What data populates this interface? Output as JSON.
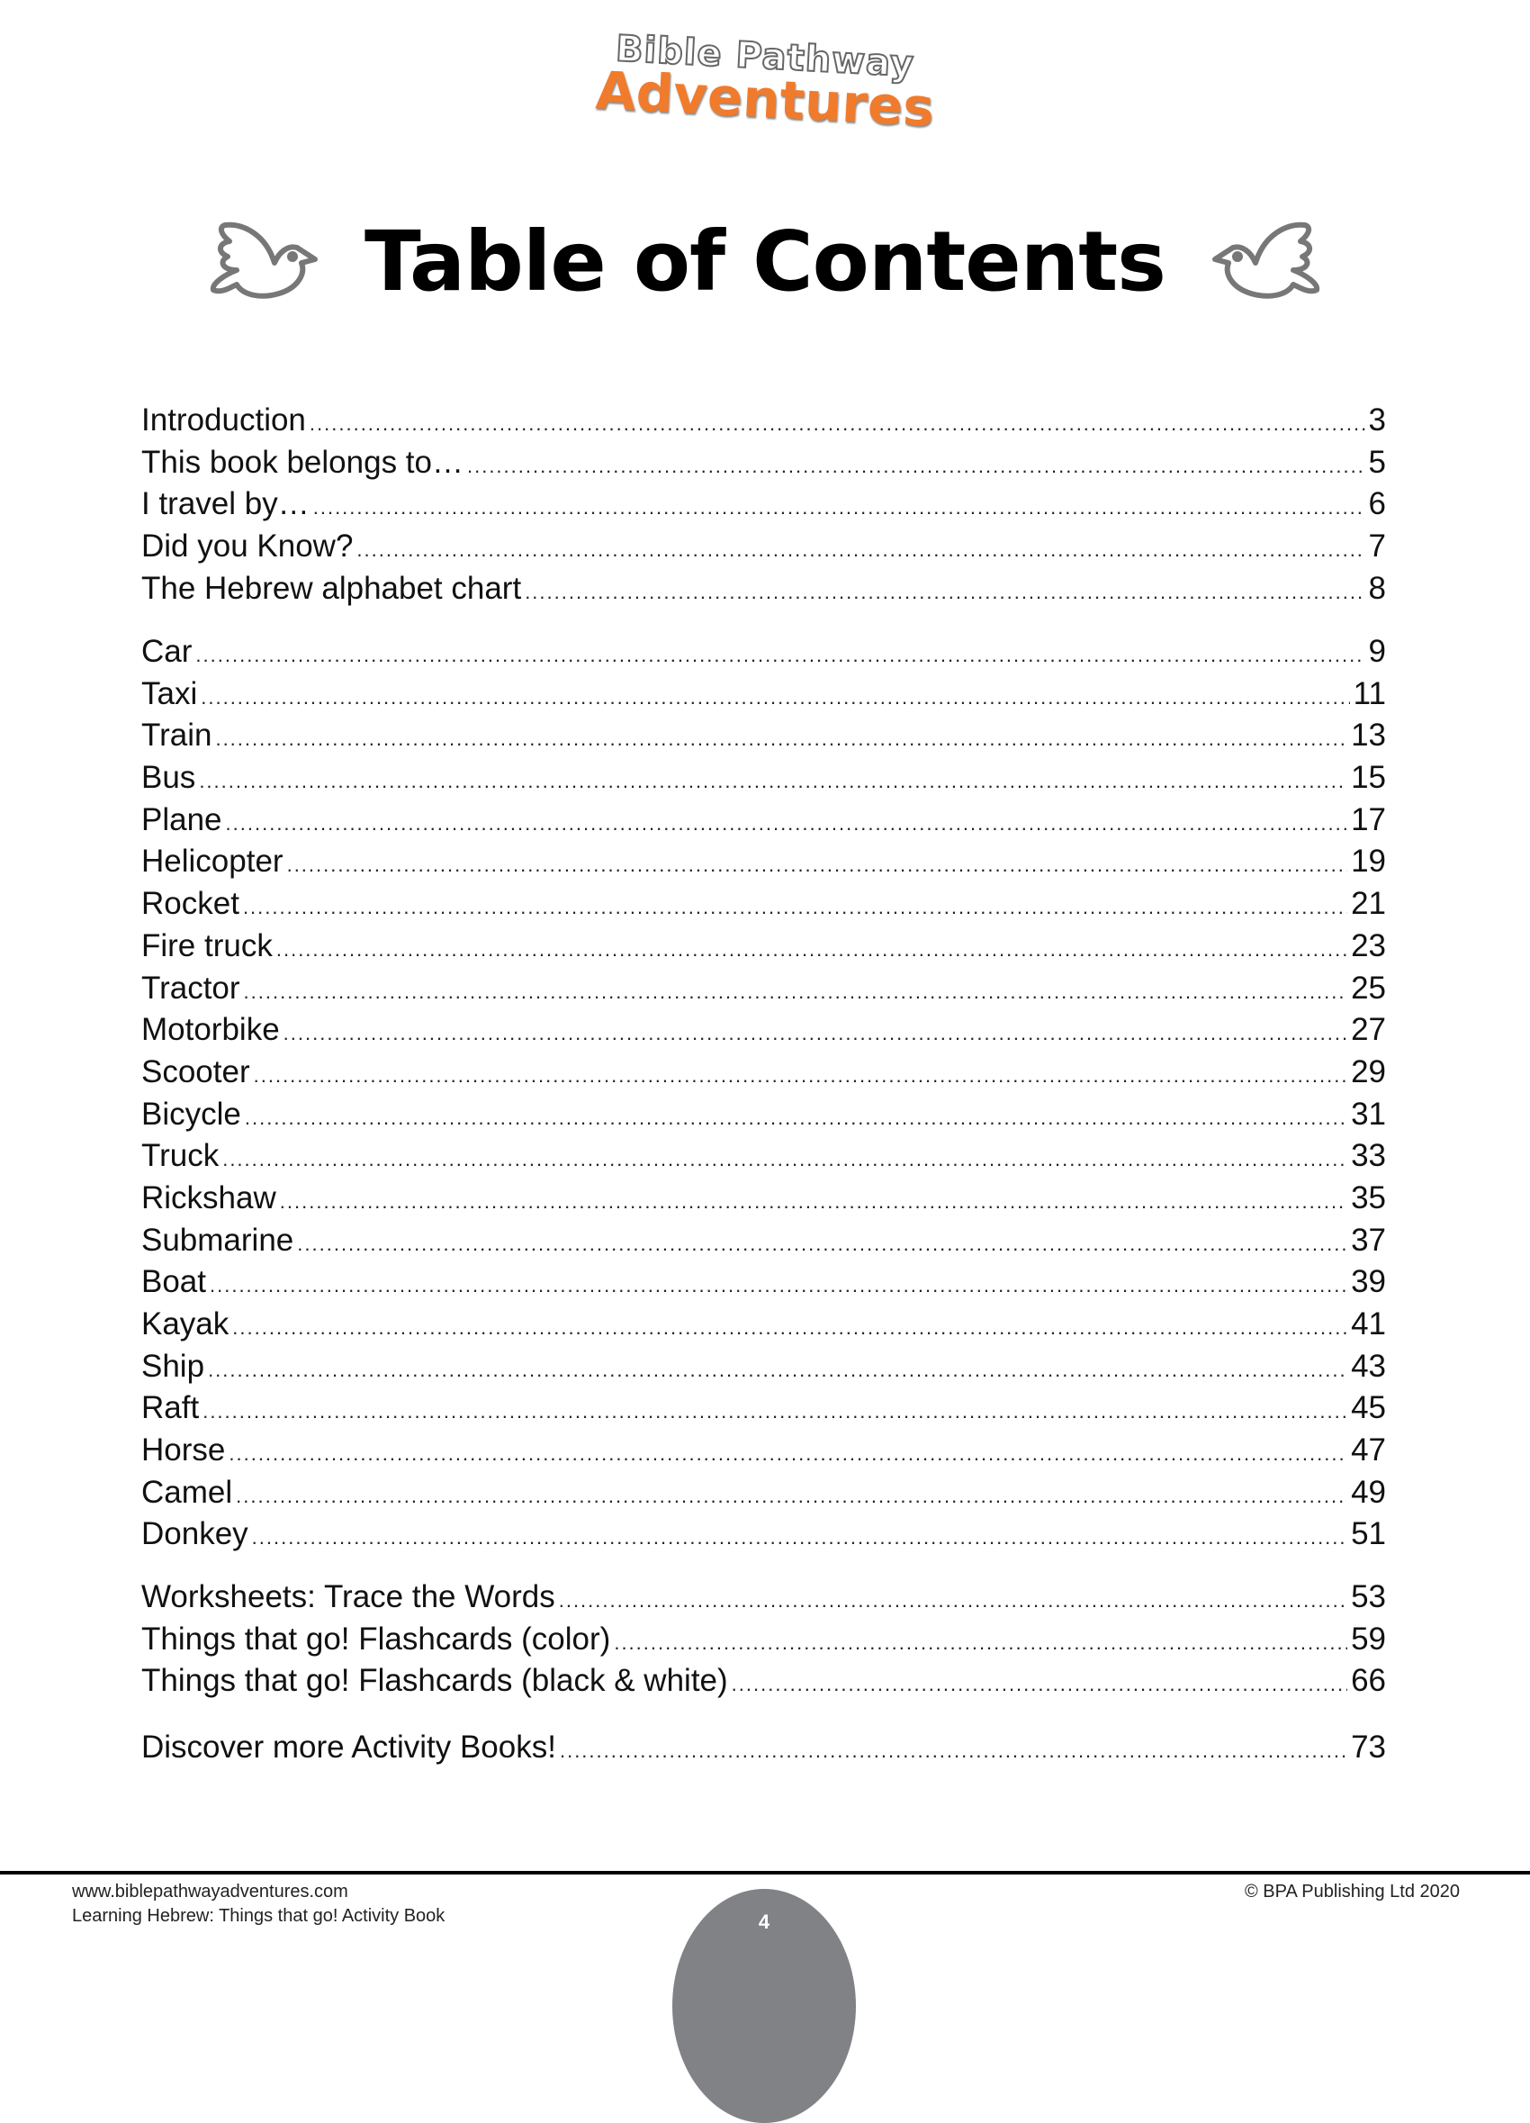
{
  "logo": {
    "line1": "Bible Pathway",
    "line2": "Adventures"
  },
  "title": "Table of Contents",
  "groups": [
    [
      {
        "label": "Introduction",
        "page": "3"
      },
      {
        "label": "This book belongs to…",
        "page": "5"
      },
      {
        "label": "I travel by…",
        "page": "6"
      },
      {
        "label": "Did you Know?",
        "page": "7"
      },
      {
        "label": "The Hebrew alphabet chart",
        "page": "8"
      }
    ],
    [
      {
        "label": "Car",
        "page": "9"
      },
      {
        "label": "Taxi",
        "page": "11"
      },
      {
        "label": "Train",
        "page": "13"
      },
      {
        "label": "Bus",
        "page": "15"
      },
      {
        "label": "Plane",
        "page": "17"
      },
      {
        "label": "Helicopter",
        "page": "19"
      },
      {
        "label": "Rocket",
        "page": "21"
      },
      {
        "label": "Fire truck",
        "page": "23"
      },
      {
        "label": "Tractor",
        "page": "25"
      },
      {
        "label": "Motorbike",
        "page": "27"
      },
      {
        "label": "Scooter",
        "page": "29"
      },
      {
        "label": "Bicycle",
        "page": "31"
      },
      {
        "label": "Truck",
        "page": "33"
      },
      {
        "label": "Rickshaw",
        "page": "35"
      },
      {
        "label": "Submarine",
        "page": "37"
      },
      {
        "label": "Boat",
        "page": "39"
      },
      {
        "label": "Kayak",
        "page": "41"
      },
      {
        "label": "Ship",
        "page": "43"
      },
      {
        "label": "Raft",
        "page": "45"
      },
      {
        "label": "Horse",
        "page": "47"
      },
      {
        "label": "Camel",
        "page": "49"
      },
      {
        "label": "Donkey",
        "page": "51"
      }
    ],
    [
      {
        "label": "Worksheets: Trace the Words",
        "page": "53"
      },
      {
        "label": "Things that go! Flashcards (color)",
        "page": "59"
      },
      {
        "label": "Things that go! Flashcards (black & white)",
        "page": "66"
      }
    ],
    [
      {
        "label": "Discover more Activity Books!",
        "page": "73"
      }
    ]
  ],
  "footer": {
    "website": "www.biblepathwayadventures.com",
    "book": "Learning Hebrew: Things that go! Activity Book",
    "copyright": "© BPA Publishing Ltd 2020",
    "page_number": "4"
  },
  "colors": {
    "accent": "#f07b2c",
    "page_bubble": "#808285",
    "dove": "#777777"
  },
  "icons": [
    "dove-icon"
  ]
}
